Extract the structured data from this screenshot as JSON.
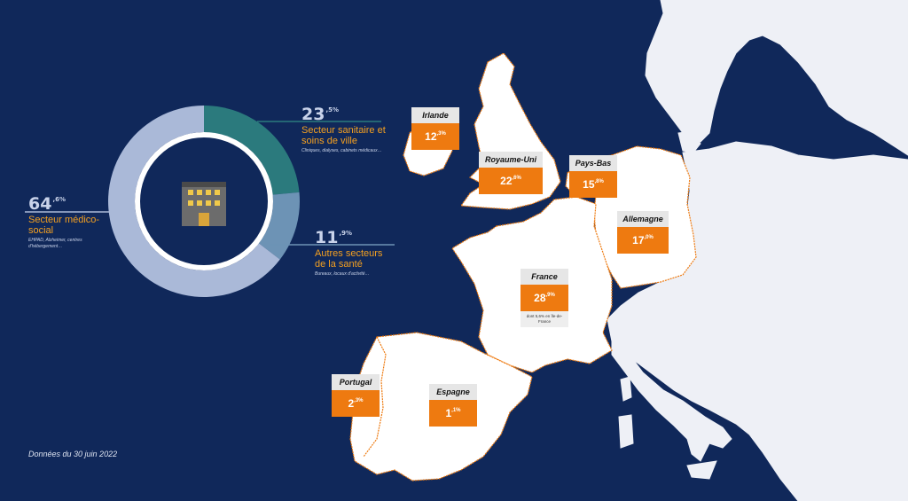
{
  "chart_data": {
    "type": "pie",
    "slices": [
      {
        "value_int": "64",
        "value_dec": ",6%",
        "value": 64.6,
        "label": "Secteur médico-social",
        "detail": "EHPAD, Alzheimer, centres d'hébergement…",
        "color": "#aab9d8",
        "label_color": "#f4a020"
      },
      {
        "value_int": "23",
        "value_dec": ",5%",
        "value": 23.5,
        "label": "Secteur sanitaire et soins de ville",
        "detail": "Cliniques, dialyses, cabinets médicaux…",
        "color": "#2b7a7d",
        "label_color": "#f4a020"
      },
      {
        "value_int": "11",
        "value_dec": ",9%",
        "value": 11.9,
        "label": "Autres secteurs de la santé",
        "detail": "Bureaux, locaux d'activité…",
        "color": "#6d93b5",
        "label_color": "#f4a020"
      }
    ]
  },
  "countries": [
    {
      "name": "Irlande",
      "value_int": "12",
      "value_dec": ",3%",
      "value": 12.3
    },
    {
      "name": "Royaume-Uni",
      "value_int": "22",
      "value_dec": ",6%",
      "value": 22.6
    },
    {
      "name": "Pays-Bas",
      "value_int": "15",
      "value_dec": ",8%",
      "value": 15.8
    },
    {
      "name": "Allemagne",
      "value_int": "17",
      "value_dec": ",0%",
      "value": 17.0
    },
    {
      "name": "France",
      "value_int": "28",
      "value_dec": ",9%",
      "value": 28.9,
      "note": "dont 5,6% en Île-de-France"
    },
    {
      "name": "Portugal",
      "value_int": "2",
      "value_dec": ",3%",
      "value": 2.3
    },
    {
      "name": "Espagne",
      "value_int": "1",
      "value_dec": ",1%",
      "value": 1.1
    }
  ],
  "footnote": "Données du 30 juin 2022",
  "colors": {
    "background": "#10285a",
    "land": "#eef0f6",
    "highlight_border": "#ee7a10",
    "accent": "#ee7a10"
  }
}
